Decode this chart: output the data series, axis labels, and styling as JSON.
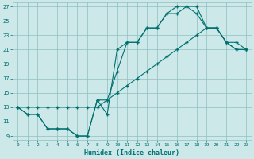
{
  "xlabel": "Humidex (Indice chaleur)",
  "bg_color": "#cce8e8",
  "grid_color": "#8fbfbf",
  "line_color": "#007070",
  "xlim": [
    -0.5,
    23.5
  ],
  "ylim": [
    8.5,
    27.5
  ],
  "xticks": [
    0,
    1,
    2,
    3,
    4,
    5,
    6,
    7,
    8,
    9,
    10,
    11,
    12,
    13,
    14,
    15,
    16,
    17,
    18,
    19,
    20,
    21,
    22,
    23
  ],
  "yticks": [
    9,
    11,
    13,
    15,
    17,
    19,
    21,
    23,
    25,
    27
  ],
  "line1_x": [
    0,
    1,
    2,
    3,
    4,
    5,
    6,
    7,
    8,
    9,
    10,
    11,
    12,
    13,
    14,
    15,
    16,
    17,
    18,
    19,
    20,
    21,
    22,
    23
  ],
  "line1_y": [
    13,
    12,
    12,
    10,
    10,
    10,
    9,
    9,
    14,
    14,
    18,
    22,
    22,
    24,
    24,
    26,
    27,
    27,
    26,
    24,
    24,
    22,
    22,
    21
  ],
  "line2_x": [
    0,
    1,
    2,
    3,
    4,
    5,
    6,
    7,
    8,
    9,
    10,
    11,
    12,
    13,
    14,
    15,
    16,
    17,
    18,
    19,
    20,
    21,
    22,
    23
  ],
  "line2_y": [
    13,
    12,
    12,
    10,
    10,
    10,
    9,
    9,
    14,
    12,
    21,
    22,
    22,
    24,
    24,
    26,
    26,
    27,
    27,
    24,
    24,
    22,
    21,
    21
  ],
  "line3_x": [
    0,
    1,
    2,
    3,
    4,
    5,
    6,
    7,
    8,
    9,
    10,
    11,
    12,
    13,
    14,
    15,
    16,
    17,
    18,
    19,
    20,
    21,
    22,
    23
  ],
  "line3_y": [
    13,
    13,
    13,
    13,
    13,
    13,
    13,
    13,
    13,
    14,
    15,
    16,
    17,
    18,
    19,
    20,
    21,
    22,
    23,
    24,
    24,
    22,
    21,
    21
  ]
}
